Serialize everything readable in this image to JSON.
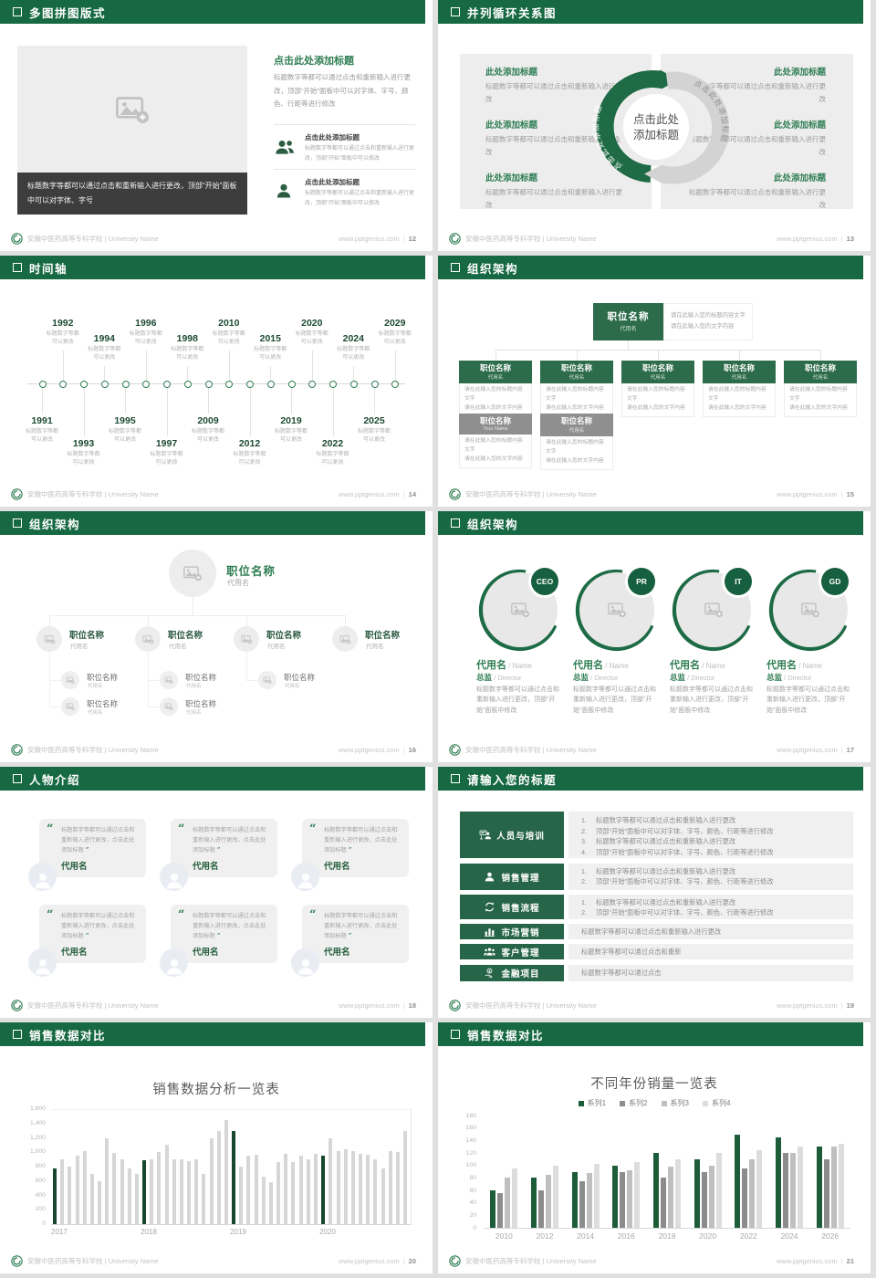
{
  "colors": {
    "header_green": "#176943",
    "accent_green": "#2e7d52",
    "box_green": "#2d6c4a",
    "block_green": "#276549",
    "badge_green": "#17603f",
    "chart_dark_green": "#17482d",
    "gray_bar": "#d6d6d6"
  },
  "footer": {
    "school": "安徽中医药高等专科学校 | University Name",
    "site": "www.pptgenius.com",
    "divider": "|"
  },
  "slides": [
    {
      "page": "12",
      "title": "多图拼图版式",
      "type": "collage",
      "caption": "标题数字等都可以通过点击和重新输入进行更改，顶部“开始”面板中可以对字体、字号",
      "right_title": "点击此处添加标题",
      "right_body": "标题数字等都可以通过点击和重新输入进行更改，顶部“开始”面板中可以对字体、字号、颜色、行距等进行修改",
      "features": [
        {
          "icon": "people-icon",
          "title": "点击此处添加标题",
          "text": "标题数字等都可以通过点击和重新输入进行更改，顶部“开始”面板中可以修改"
        },
        {
          "icon": "person-icon",
          "title": "点击此处添加标题",
          "text": "标题数字等都可以通过点击和重新输入进行更改，顶部“开始”面板中可以修改"
        }
      ]
    },
    {
      "page": "13",
      "title": "并列循环关系图",
      "type": "cycle",
      "center_lines": [
        "点击此处",
        "添加标题"
      ],
      "arc_label": "点击此处添加标题",
      "left": [
        {
          "title": "此处添加标题",
          "text": "标题数字等都可以通过点击和重新输入进行更改"
        },
        {
          "title": "此处添加标题",
          "text": "标题数字等都可以通过点击和重新输入进行更改"
        },
        {
          "title": "此处添加标题",
          "text": "标题数字等都可以通过点击和重新输入进行更改"
        }
      ],
      "right": [
        {
          "title": "此处添加标题",
          "text": "标题数字等都可以通过点击和重新输入进行更改"
        },
        {
          "title": "此处添加标题",
          "text": "标题数字等都可以通过点击和重新输入进行更改"
        },
        {
          "title": "此处添加标题",
          "text": "标题数字等都可以通过点击和重新输入进行更改"
        }
      ]
    },
    {
      "page": "14",
      "title": "时间轴",
      "type": "timeline",
      "caption": [
        "标题数字等都",
        "可以更改"
      ],
      "years": [
        "1991",
        "1992",
        "1993",
        "1994",
        "1995",
        "1996",
        "1997",
        "1998",
        "2009",
        "2010",
        "2012",
        "2015",
        "2019",
        "2020",
        "2022",
        "2024",
        "2025",
        "2029"
      ]
    },
    {
      "page": "15",
      "title": "组织架构",
      "type": "org-boxes",
      "root": {
        "title": "职位名称",
        "subtitle": "代用名"
      },
      "note": [
        "请在此输入您的标题内容文字",
        "请在此输入您的文字内容"
      ],
      "box_note": [
        "请在此输入您的标题内容文字",
        "请在此输入您的文字内容"
      ],
      "row1": [
        {
          "title": "职位名称",
          "subtitle": "代用名"
        },
        {
          "title": "职位名称",
          "subtitle": "代用名"
        },
        {
          "title": "职位名称",
          "subtitle": "代用名"
        },
        {
          "title": "职位名称",
          "subtitle": "代用名"
        },
        {
          "title": "职位名称",
          "subtitle": "代用名"
        }
      ],
      "row2": [
        {
          "title": "职位名称",
          "subtitle": "Your Name"
        },
        {
          "title": "职位名称",
          "subtitle": "代用名"
        }
      ]
    },
    {
      "page": "16",
      "title": "组织架构",
      "type": "org-photo",
      "root": {
        "title": "职位名称",
        "subtitle": "代用名"
      },
      "branches": [
        {
          "title": "职位名称",
          "subtitle": "代用名",
          "children": [
            {
              "title": "职位名称",
              "subtitle": "代用名"
            },
            {
              "title": "职位名称",
              "subtitle": "代用名"
            }
          ]
        },
        {
          "title": "职位名称",
          "subtitle": "代用名",
          "children": [
            {
              "title": "职位名称",
              "subtitle": "代用名"
            },
            {
              "title": "职位名称",
              "subtitle": "代用名"
            }
          ]
        },
        {
          "title": "职位名称",
          "subtitle": "代用名",
          "children": [
            {
              "title": "职位名称",
              "subtitle": "代用名"
            }
          ]
        },
        {
          "title": "职位名称",
          "subtitle": "代用名",
          "children": []
        }
      ]
    },
    {
      "page": "17",
      "title": "组织架构",
      "type": "org-circles",
      "members": [
        {
          "badge": "CEO",
          "name": "代用名",
          "name_en": "Name",
          "role": "总监",
          "role_en": "Director",
          "text": "标题数字等都可以通过点击和重新输入进行更改，顶部“开始”面板中修改"
        },
        {
          "badge": "PR",
          "name": "代用名",
          "name_en": "Name",
          "role": "总监",
          "role_en": "Director",
          "text": "标题数字等都可以通过点击和重新输入进行更改，顶部“开始”面板中修改"
        },
        {
          "badge": "IT",
          "name": "代用名",
          "name_en": "Name",
          "role": "总监",
          "role_en": "Director",
          "text": "标题数字等都可以通过点击和重新输入进行更改，顶部“开始”面板中修改"
        },
        {
          "badge": "GD",
          "name": "代用名",
          "name_en": "Name",
          "role": "总监",
          "role_en": "Director",
          "text": "标题数字等都可以通过点击和重新输入进行更改，顶部“开始”面板中修改"
        }
      ]
    },
    {
      "page": "18",
      "title": "人物介绍",
      "type": "people",
      "cards": [
        {
          "quote": "标题数字等都可以通过点击和重新输入进行更改，点击此处添加标题",
          "name": "代用名"
        },
        {
          "quote": "标题数字等都可以通过点击和重新输入进行更改，点击此处添加标题",
          "name": "代用名"
        },
        {
          "quote": "标题数字等都可以通过点击和重新输入进行更改，点击此处添加标题",
          "name": "代用名"
        },
        {
          "quote": "标题数字等都可以通过点击和重新输入进行更改，点击此处添加标题",
          "name": "代用名"
        },
        {
          "quote": "标题数字等都可以通过点击和重新输入进行更改，点击此处添加标题",
          "name": "代用名"
        },
        {
          "quote": "标题数字等都可以通过点击和重新输入进行更改，点击此处添加标题",
          "name": "代用名"
        }
      ]
    },
    {
      "page": "19",
      "title": "请输入您的标题",
      "type": "agenda",
      "rows": [
        {
          "icon": "training-icon",
          "label": "人员与培训",
          "lines": [
            "标题数字等都可以通过点击和重新输入进行更改",
            "顶部“开始”面板中可以对字体、字号、颜色、行距等进行修改",
            "标题数字等都可以通过点击和重新输入进行更改",
            "顶部“开始”面板中可以对字体、字号、颜色、行距等进行修改"
          ]
        },
        {
          "icon": "sales-icon",
          "label": "销售管理",
          "lines": [
            "标题数字等都可以通过点击和重新输入进行更改",
            "顶部“开始”面板中可以对字体、字号、颜色、行距等进行修改"
          ]
        },
        {
          "icon": "process-icon",
          "label": "销售流程",
          "lines": [
            "标题数字等都可以通过点击和重新输入进行更改",
            "顶部“开始”面板中可以对字体、字号、颜色、行距等进行修改"
          ]
        },
        {
          "icon": "marketing-icon",
          "label": "市场营销",
          "lines": [
            "标题数字等都可以通过点击和重新输入进行更改"
          ]
        },
        {
          "icon": "customer-icon",
          "label": "客户管理",
          "lines": [
            "标题数字等都可以通过点击和重新"
          ]
        },
        {
          "icon": "finance-icon",
          "label": "金融项目",
          "lines": [
            "标题数字等都可以通过点击"
          ]
        }
      ]
    },
    {
      "page": "20",
      "title": "销售数据对比",
      "type": "chart",
      "chart": 0
    },
    {
      "page": "21",
      "title": "销售数据对比",
      "type": "chart",
      "chart": 1
    }
  ],
  "chart_data": [
    {
      "type": "bar",
      "title": "销售数据分析一览表",
      "years": [
        "2017",
        "2018",
        "2019",
        "2020"
      ],
      "values": [
        780,
        900,
        800,
        950,
        1020,
        700,
        600,
        1200,
        990,
        900,
        780,
        700,
        890,
        900,
        1000,
        1100,
        900,
        900,
        880,
        900,
        700,
        1200,
        1300,
        1450,
        1300,
        800,
        950,
        960,
        660,
        580,
        870,
        980,
        860,
        950,
        900,
        980,
        950,
        1200,
        1020,
        1040,
        1020,
        980,
        970,
        900,
        770,
        1020,
        1000,
        1300
      ],
      "highlight_every": 12,
      "bar_color": "#d6d6d6",
      "highlight_color": "#17482d",
      "ylim": [
        0,
        1600
      ],
      "yticks": [
        "0",
        "200",
        "400",
        "600",
        "800",
        "1,000",
        "1,200",
        "1,400",
        "1,600"
      ],
      "grid": false,
      "legend": "none"
    },
    {
      "type": "grouped-bar",
      "title": "不同年份销量一览表",
      "categories": [
        "2010",
        "2012",
        "2014",
        "2016",
        "2018",
        "2020",
        "2022",
        "2024",
        "2026"
      ],
      "series": [
        {
          "name": "系列1",
          "color": "#1d5c38",
          "values": [
            60,
            80,
            90,
            100,
            120,
            110,
            150,
            145,
            130
          ]
        },
        {
          "name": "系列2",
          "color": "#8c8c8c",
          "values": [
            55,
            60,
            75,
            90,
            80,
            90,
            95,
            120,
            110
          ]
        },
        {
          "name": "系列3",
          "color": "#bfbfbf",
          "values": [
            80,
            85,
            88,
            92,
            98,
            100,
            110,
            120,
            130
          ]
        },
        {
          "name": "系列4",
          "color": "#dddddd",
          "values": [
            95,
            100,
            102,
            105,
            110,
            120,
            125,
            130,
            135
          ]
        }
      ],
      "ylim": [
        0,
        180
      ],
      "yticks": [
        "0",
        "20",
        "40",
        "60",
        "80",
        "100",
        "120",
        "140",
        "160",
        "180"
      ],
      "grid": false,
      "legend": "top-center"
    }
  ]
}
